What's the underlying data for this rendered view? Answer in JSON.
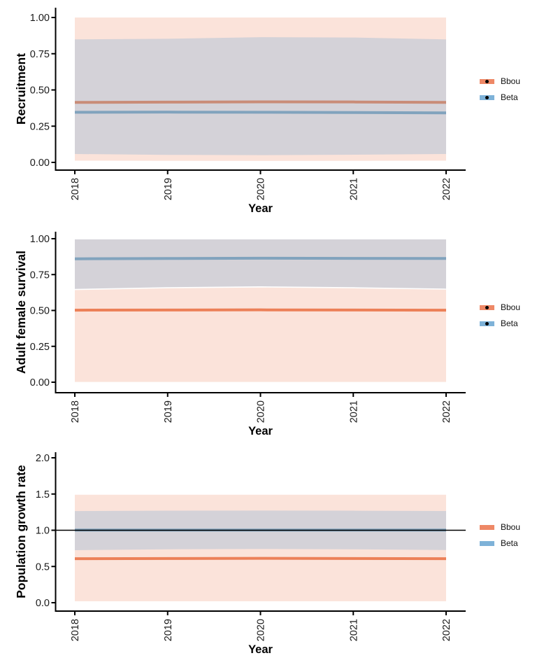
{
  "figure_title": "",
  "colors": {
    "bbou_accent": "#EE8866",
    "beta_accent": "#7EB2D8",
    "bbou_ribbon_fill": "#FBE3DA",
    "beta_ribbon_fill": "#D4D2D8",
    "reference_line": "#000000",
    "axis": "#000000"
  },
  "chart_data": [
    {
      "type": "area",
      "title": "",
      "ylabel": "Recruitment",
      "xlabel": "Year",
      "x": [
        2018,
        2019,
        2020,
        2021,
        2022
      ],
      "xtick_labels": [
        "2018",
        "2019",
        "2020",
        "2021",
        "2022"
      ],
      "ylim": [
        0,
        1
      ],
      "ytick_values": [
        0,
        0.25,
        0.5,
        0.75,
        1.0
      ],
      "ytick_labels": [
        "0.00",
        "0.25",
        "0.50",
        "0.75",
        "1.00"
      ],
      "grid": "off",
      "legend_position": "right",
      "legend_has_dot": true,
      "legend": [
        {
          "label": "Bbou",
          "color": "#EE8866"
        },
        {
          "label": "Beta",
          "color": "#7EB2D8"
        }
      ],
      "series": [
        {
          "name": "Bbou 95% CI",
          "geom": "ribbon",
          "upper": [
            1.0,
            1.0,
            1.0,
            1.0,
            1.0
          ],
          "lower": [
            0.012,
            0.011,
            0.01,
            0.011,
            0.012
          ],
          "fill": "#FBE3DA"
        },
        {
          "name": "Beta 95% CI",
          "geom": "ribbon",
          "upper": [
            0.849,
            0.853,
            0.864,
            0.862,
            0.849
          ],
          "lower": [
            0.058,
            0.052,
            0.05,
            0.053,
            0.058
          ],
          "fill": "#D4D2D8"
        },
        {
          "name": "Bbou mean",
          "geom": "line",
          "values": [
            0.414,
            0.416,
            0.418,
            0.417,
            0.414
          ],
          "color": "#C98C78"
        },
        {
          "name": "Beta mean",
          "geom": "line",
          "values": [
            0.346,
            0.347,
            0.346,
            0.344,
            0.342
          ],
          "color": "#81A3BD"
        }
      ]
    },
    {
      "type": "area",
      "title": "",
      "ylabel": "Adult female survival",
      "xlabel": "Year",
      "x": [
        2018,
        2019,
        2020,
        2021,
        2022
      ],
      "xtick_labels": [
        "2018",
        "2019",
        "2020",
        "2021",
        "2022"
      ],
      "ylim": [
        0,
        1
      ],
      "ytick_values": [
        0,
        0.25,
        0.5,
        0.75,
        1.0
      ],
      "ytick_labels": [
        "0.00",
        "0.25",
        "0.50",
        "0.75",
        "1.00"
      ],
      "grid": "off",
      "legend_position": "right",
      "legend_has_dot": true,
      "legend": [
        {
          "label": "Bbou",
          "color": "#EE8866"
        },
        {
          "label": "Beta",
          "color": "#7EB2D8"
        }
      ],
      "series": [
        {
          "name": "Bbou 95% CI",
          "geom": "ribbon",
          "upper": [
            0.642,
            0.654,
            0.66,
            0.654,
            0.645
          ],
          "lower": [
            0.002,
            0.002,
            0.002,
            0.002,
            0.002
          ],
          "fill": "#FBE3DA"
        },
        {
          "name": "Beta 95% CI",
          "geom": "ribbon",
          "upper": [
            0.995,
            0.995,
            0.995,
            0.995,
            0.995
          ],
          "lower": [
            0.65,
            0.662,
            0.668,
            0.662,
            0.652
          ],
          "fill": "#D4D2D8"
        },
        {
          "name": "Bbou mean",
          "geom": "line",
          "values": [
            0.502,
            0.503,
            0.504,
            0.503,
            0.502
          ],
          "color": "#EC8058"
        },
        {
          "name": "Beta mean",
          "geom": "line",
          "values": [
            0.86,
            0.862,
            0.864,
            0.863,
            0.862
          ],
          "color": "#81A3BD"
        }
      ]
    },
    {
      "type": "area",
      "title": "",
      "ylabel": "Population growth rate",
      "xlabel": "Year",
      "x": [
        2018,
        2019,
        2020,
        2021,
        2022
      ],
      "xtick_labels": [
        "2018",
        "2019",
        "2020",
        "2021",
        "2022"
      ],
      "ylim": [
        0,
        2
      ],
      "ytick_values": [
        0,
        0.5,
        1.0,
        1.5,
        2.0
      ],
      "ytick_labels": [
        "0.0",
        "0.5",
        "1.0",
        "1.5",
        "2.0"
      ],
      "grid": "off",
      "legend_position": "right",
      "legend_has_dot": false,
      "refline": {
        "value": 1.0,
        "color": "#000000"
      },
      "legend": [
        {
          "label": "Bbou",
          "color": "#EE8866"
        },
        {
          "label": "Beta",
          "color": "#7EB2D8"
        }
      ],
      "series": [
        {
          "name": "Bbou 95% CI",
          "geom": "ribbon",
          "upper": [
            1.49,
            1.49,
            1.49,
            1.49,
            1.49
          ],
          "lower": [
            0.02,
            0.02,
            0.02,
            0.02,
            0.02
          ],
          "fill": "#FBE3DA"
        },
        {
          "name": "Beta 95% CI",
          "geom": "ribbon",
          "upper": [
            1.265,
            1.271,
            1.272,
            1.27,
            1.266
          ],
          "lower": [
            0.725,
            0.737,
            0.742,
            0.737,
            0.727
          ],
          "fill": "#D4D2D8"
        },
        {
          "name": "Beta mean",
          "geom": "line",
          "values": [
            1.002,
            1.002,
            1.002,
            1.002,
            1.002
          ],
          "color": "#7CA0BA"
        },
        {
          "name": "Bbou mean",
          "geom": "line",
          "values": [
            0.607,
            0.61,
            0.612,
            0.61,
            0.608
          ],
          "color": "#EC8058"
        }
      ]
    }
  ]
}
